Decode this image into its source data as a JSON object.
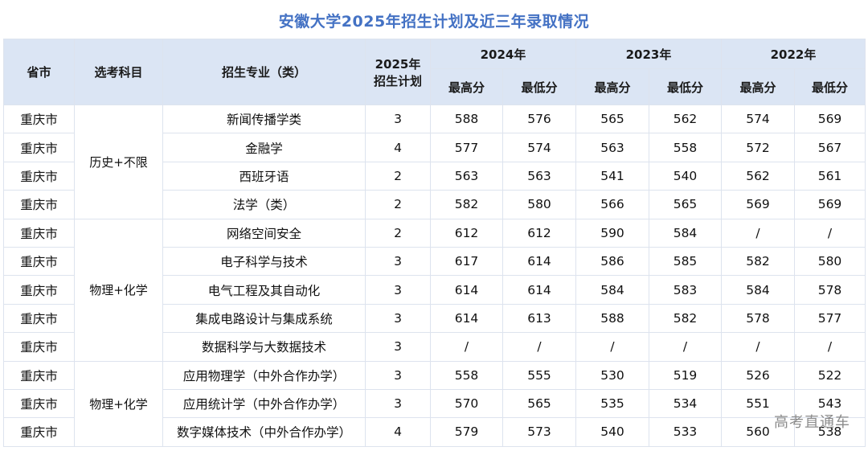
{
  "title": "安徽大学2025年招生计划及近三年录取情况",
  "headers": {
    "province": "省市",
    "subject": "选考科目",
    "major": "招生专业（类）",
    "plan_line1": "2025年",
    "plan_line2": "招生计划",
    "years": [
      "2024年",
      "2023年",
      "2022年"
    ],
    "max": "最高分",
    "min": "最低分"
  },
  "groups": [
    {
      "subject": "历史+不限",
      "rows": [
        [
          "重庆市",
          "新闻传播学类",
          "3",
          "588",
          "576",
          "565",
          "562",
          "574",
          "569"
        ],
        [
          "重庆市",
          "金融学",
          "4",
          "577",
          "574",
          "563",
          "558",
          "572",
          "567"
        ],
        [
          "重庆市",
          "西班牙语",
          "2",
          "563",
          "563",
          "541",
          "540",
          "562",
          "561"
        ],
        [
          "重庆市",
          "法学（类）",
          "2",
          "582",
          "580",
          "566",
          "565",
          "569",
          "569"
        ]
      ]
    },
    {
      "subject": "物理+化学",
      "rows": [
        [
          "重庆市",
          "网络空间安全",
          "2",
          "612",
          "612",
          "590",
          "584",
          "/",
          "/"
        ],
        [
          "重庆市",
          "电子科学与技术",
          "3",
          "617",
          "614",
          "586",
          "585",
          "582",
          "580"
        ],
        [
          "重庆市",
          "电气工程及其自动化",
          "3",
          "614",
          "614",
          "584",
          "583",
          "584",
          "578"
        ],
        [
          "重庆市",
          "集成电路设计与集成系统",
          "3",
          "614",
          "613",
          "588",
          "582",
          "578",
          "577"
        ],
        [
          "重庆市",
          "数据科学与大数据技术",
          "3",
          "/",
          "/",
          "/",
          "/",
          "/",
          "/"
        ]
      ]
    },
    {
      "subject": "物理+化学",
      "rows": [
        [
          "重庆市",
          "应用物理学（中外合作办学）",
          "3",
          "558",
          "555",
          "530",
          "519",
          "526",
          "522"
        ],
        [
          "重庆市",
          "应用统计学（中外合作办学）",
          "3",
          "570",
          "565",
          "535",
          "534",
          "551",
          "543"
        ],
        [
          "重庆市",
          "数字媒体技术（中外合作办学）",
          "4",
          "579",
          "573",
          "540",
          "533",
          "560",
          "538"
        ]
      ]
    }
  ],
  "watermark": "高考直通车"
}
